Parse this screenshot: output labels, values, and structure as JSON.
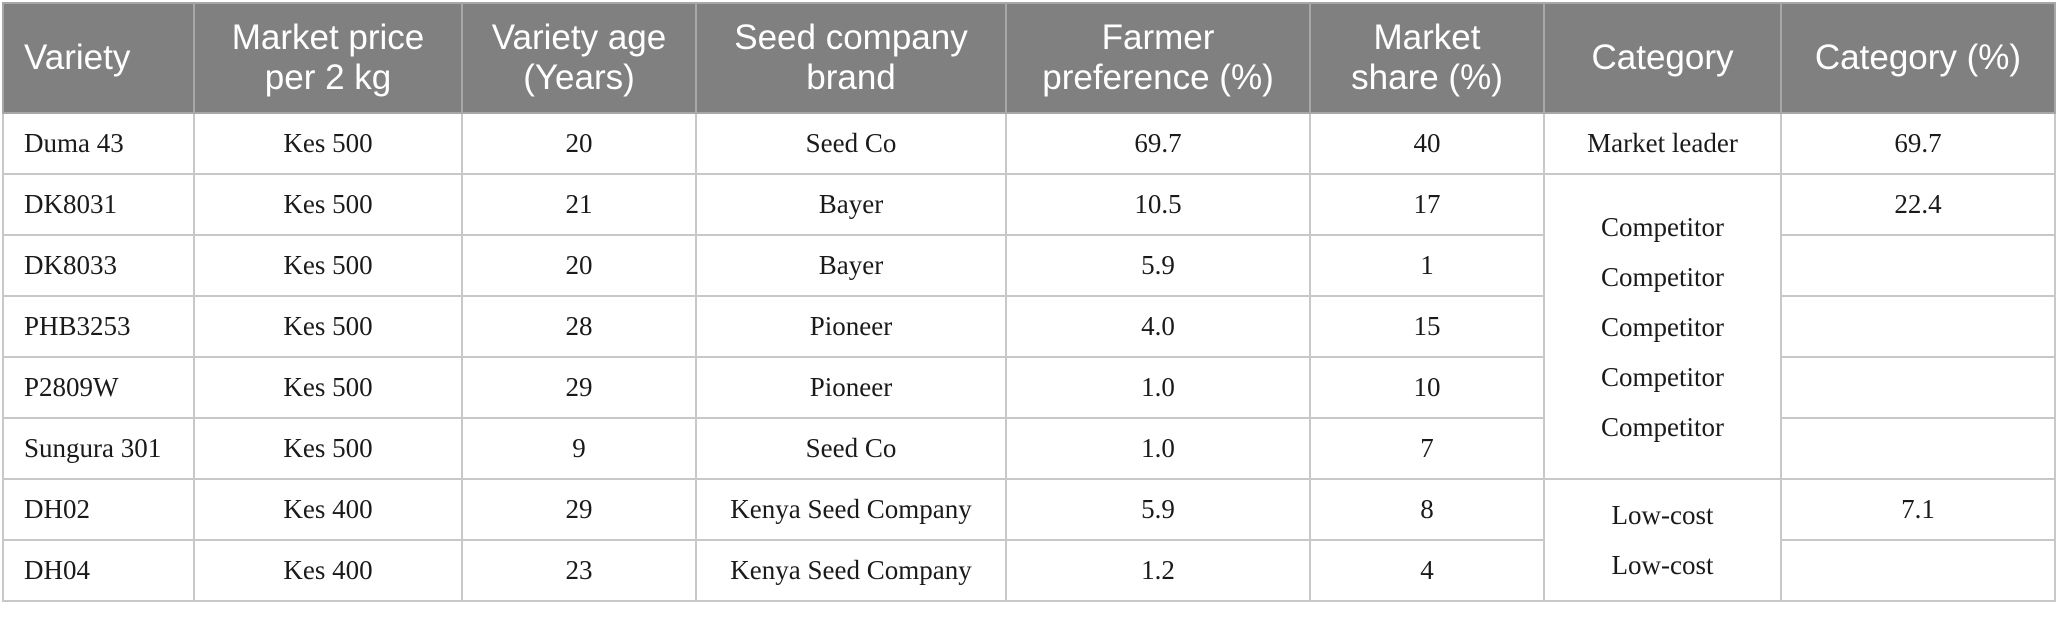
{
  "headers": {
    "variety": "Variety",
    "price": "Market price per 2 kg",
    "age": "Variety age (Years)",
    "brand": "Seed company brand",
    "preference": "Farmer preference (%)",
    "share": "Market share (%)",
    "category": "Category",
    "category_pct": "Category (%)"
  },
  "rows": [
    {
      "variety": "Duma 43",
      "price": "Kes 500",
      "age": "20",
      "brand": "Seed Co",
      "preference": "69.7",
      "share": "40"
    },
    {
      "variety": "DK8031",
      "price": "Kes 500",
      "age": "21",
      "brand": "Bayer",
      "preference": "10.5",
      "share": "17"
    },
    {
      "variety": "DK8033",
      "price": "Kes 500",
      "age": "20",
      "brand": "Bayer",
      "preference": "5.9",
      "share": "1"
    },
    {
      "variety": "PHB3253",
      "price": "Kes 500",
      "age": "28",
      "brand": "Pioneer",
      "preference": "4.0",
      "share": "15"
    },
    {
      "variety": "P2809W",
      "price": "Kes 500",
      "age": "29",
      "brand": "Pioneer",
      "preference": "1.0",
      "share": "10"
    },
    {
      "variety": "Sungura 301",
      "price": "Kes 500",
      "age": "9",
      "brand": "Seed Co",
      "preference": "1.0",
      "share": "7"
    },
    {
      "variety": "DH02",
      "price": "Kes 400",
      "age": "29",
      "brand": "Kenya Seed Company",
      "preference": "5.9",
      "share": "8"
    },
    {
      "variety": "DH04",
      "price": "Kes 400",
      "age": "23",
      "brand": "Kenya Seed Company",
      "preference": "1.2",
      "share": "4"
    }
  ],
  "categories": {
    "market_leader": {
      "label": "Market leader",
      "pct": "69.7"
    },
    "competitor": {
      "labels": [
        "Competitor",
        "Competitor",
        "Competitor",
        "Competitor",
        "Competitor"
      ],
      "pct": "22.4"
    },
    "low_cost": {
      "labels": [
        "Low-cost",
        "Low-cost"
      ],
      "pct": "7.1"
    }
  }
}
